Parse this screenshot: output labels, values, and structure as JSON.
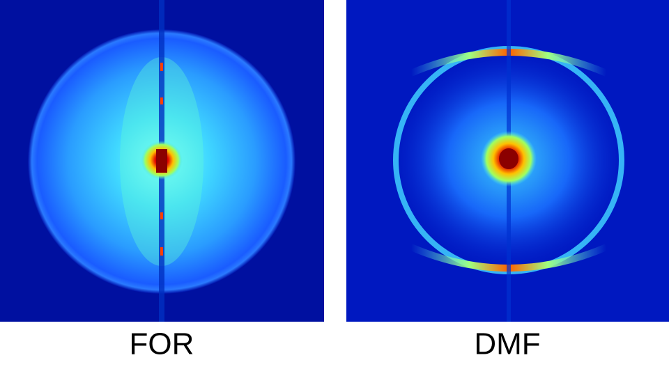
{
  "panels": [
    {
      "label": "FOR"
    },
    {
      "label": "DMF"
    }
  ]
}
